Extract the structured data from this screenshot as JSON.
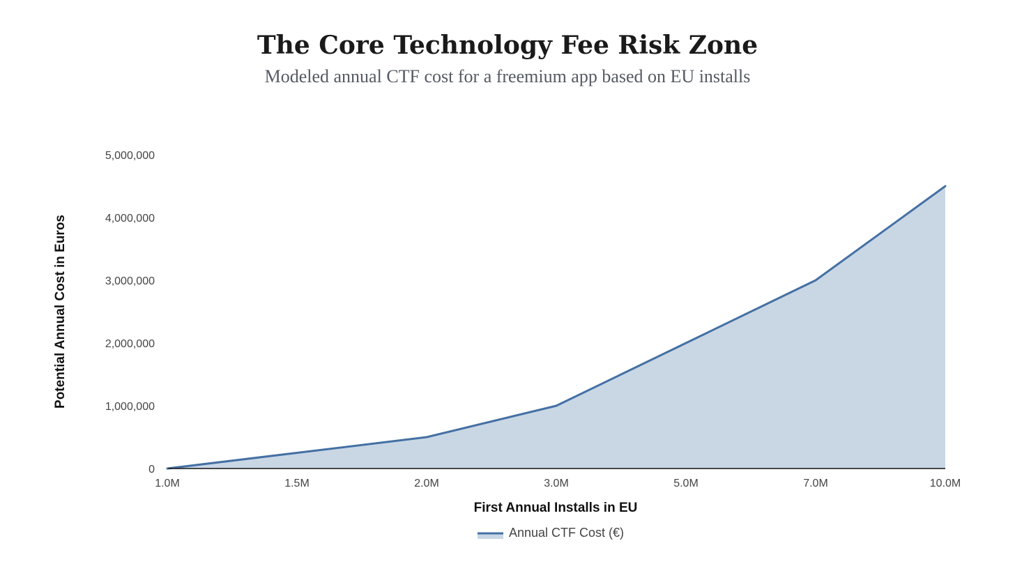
{
  "chart_data": {
    "type": "area",
    "title": "The Core Technology Fee Risk Zone",
    "subtitle": "Modeled annual CTF cost for a freemium app based on EU installs",
    "xlabel": "First Annual Installs in EU",
    "ylabel": "Potential Annual Cost in Euros",
    "categories": [
      "1.0M",
      "1.5M",
      "2.0M",
      "3.0M",
      "5.0M",
      "7.0M",
      "10.0M"
    ],
    "series": [
      {
        "name": "Annual CTF Cost (€)",
        "values": [
          0,
          250000,
          500000,
          1000000,
          2000000,
          3000000,
          4500000
        ]
      }
    ],
    "y_ticks": [
      "0",
      "1,000,000",
      "2,000,000",
      "3,000,000",
      "4,000,000",
      "5,000,000"
    ],
    "ylim": [
      0,
      5000000
    ],
    "grid": false,
    "legend_position": "bottom-center",
    "colors": {
      "line": "#4470a3",
      "fill": "#c9d7e5",
      "axis": "#111111"
    }
  }
}
